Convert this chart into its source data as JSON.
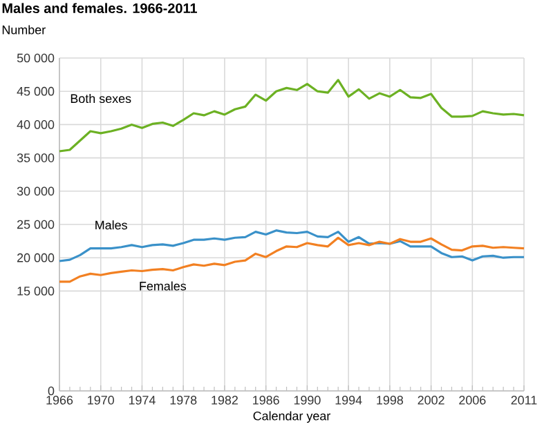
{
  "chart_data": {
    "type": "line",
    "title": "Males and females. 1966-2011",
    "ylabel": "Number",
    "xlabel": "Calendar year",
    "x": [
      1966,
      1967,
      1968,
      1969,
      1970,
      1971,
      1972,
      1973,
      1974,
      1975,
      1976,
      1977,
      1978,
      1979,
      1980,
      1981,
      1982,
      1983,
      1984,
      1985,
      1986,
      1987,
      1988,
      1989,
      1990,
      1991,
      1992,
      1993,
      1994,
      1995,
      1996,
      1997,
      1998,
      1999,
      2000,
      2001,
      2002,
      2003,
      2004,
      2005,
      2006,
      2007,
      2008,
      2009,
      2010,
      2011
    ],
    "series": [
      {
        "name": "Both sexes",
        "color": "#6cb123",
        "values": [
          36000,
          36200,
          37600,
          39000,
          38700,
          39000,
          39400,
          40000,
          39500,
          40100,
          40300,
          39800,
          40700,
          41700,
          41400,
          42000,
          41500,
          42300,
          42700,
          44500,
          43600,
          45000,
          45500,
          45200,
          46100,
          45000,
          44800,
          46700,
          44200,
          45300,
          43900,
          44700,
          44200,
          45200,
          44100,
          44000,
          44600,
          42500,
          41200,
          41200,
          41300,
          42000,
          41700,
          41500,
          41600,
          41400
        ]
      },
      {
        "name": "Males",
        "color": "#3a91c9",
        "values": [
          19500,
          19700,
          20400,
          21400,
          21400,
          21400,
          21600,
          21900,
          21600,
          21900,
          22000,
          21800,
          22200,
          22700,
          22700,
          22900,
          22700,
          23000,
          23100,
          23900,
          23500,
          24100,
          23800,
          23700,
          23900,
          23200,
          23100,
          23900,
          22400,
          23100,
          22100,
          22200,
          22100,
          22500,
          21700,
          21700,
          21700,
          20700,
          20100,
          20200,
          19600,
          20200,
          20300,
          20000,
          20100,
          20100
        ]
      },
      {
        "name": "Females",
        "color": "#f28022",
        "values": [
          16400,
          16400,
          17200,
          17600,
          17400,
          17700,
          17900,
          18100,
          18000,
          18200,
          18300,
          18100,
          18600,
          19000,
          18800,
          19100,
          18900,
          19400,
          19600,
          20600,
          20100,
          21000,
          21700,
          21600,
          22200,
          21900,
          21700,
          23000,
          21900,
          22200,
          21900,
          22400,
          22100,
          22800,
          22400,
          22400,
          22900,
          22000,
          21200,
          21100,
          21700,
          21800,
          21500,
          21600,
          21500,
          21400
        ]
      }
    ],
    "xlim": [
      1966,
      2011
    ],
    "xticks": [
      1966,
      {
        "value": 1967,
        "label": null
      },
      {
        "value": 1968,
        "label": null
      },
      {
        "value": 1969,
        "label": null
      },
      1970,
      {
        "value": 1971,
        "label": null
      },
      {
        "value": 1972,
        "label": null
      },
      {
        "value": 1973,
        "label": null
      },
      1974,
      {
        "value": 1975,
        "label": null
      },
      {
        "value": 1976,
        "label": null
      },
      {
        "value": 1977,
        "label": null
      },
      1978,
      {
        "value": 1979,
        "label": null
      },
      {
        "value": 1980,
        "label": null
      },
      {
        "value": 1981,
        "label": null
      },
      1982,
      {
        "value": 1983,
        "label": null
      },
      {
        "value": 1984,
        "label": null
      },
      {
        "value": 1985,
        "label": null
      },
      1986,
      {
        "value": 1987,
        "label": null
      },
      {
        "value": 1988,
        "label": null
      },
      {
        "value": 1989,
        "label": null
      },
      1990,
      {
        "value": 1991,
        "label": null
      },
      {
        "value": 1992,
        "label": null
      },
      {
        "value": 1993,
        "label": null
      },
      1994,
      {
        "value": 1995,
        "label": null
      },
      {
        "value": 1996,
        "label": null
      },
      {
        "value": 1997,
        "label": null
      },
      1998,
      {
        "value": 1999,
        "label": null
      },
      {
        "value": 2000,
        "label": null
      },
      {
        "value": 2001,
        "label": null
      },
      2002,
      {
        "value": 2003,
        "label": null
      },
      {
        "value": 2004,
        "label": null
      },
      {
        "value": 2005,
        "label": null
      },
      2006,
      {
        "value": 2007,
        "label": null
      },
      {
        "value": 2008,
        "label": null
      },
      {
        "value": 2009,
        "label": null
      },
      {
        "value": 2010,
        "label": null
      },
      2011
    ],
    "ylim": [
      0,
      50000
    ],
    "yticks": [
      0,
      {
        "value": 15000,
        "label": "15 000"
      },
      {
        "value": 20000,
        "label": "20 000"
      },
      {
        "value": 25000,
        "label": "25 000"
      },
      {
        "value": 30000,
        "label": "30 000"
      },
      {
        "value": 35000,
        "label": "35 000"
      },
      {
        "value": 40000,
        "label": "40 000"
      },
      {
        "value": 45000,
        "label": "45 000"
      },
      {
        "value": 50000,
        "label": "50 000"
      }
    ],
    "grid": true
  }
}
